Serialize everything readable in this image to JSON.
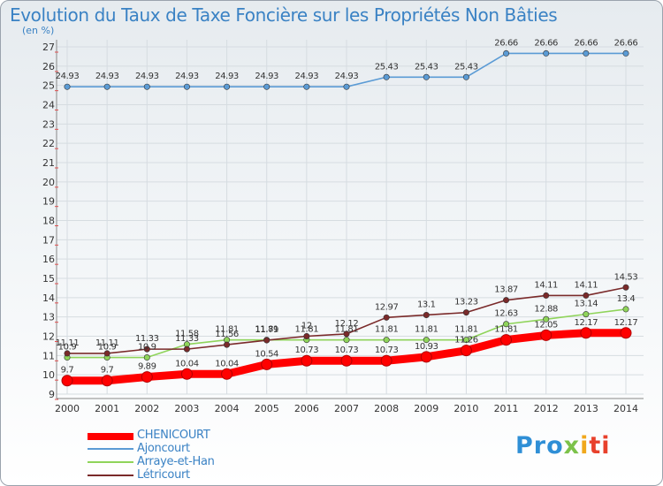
{
  "chart_data": {
    "type": "line",
    "title": "Evolution du Taux de Taxe Foncière sur les Propriétés Non Bâties",
    "subtitle": "(en %)",
    "x": [
      "2000",
      "2001",
      "2002",
      "2003",
      "2004",
      "2005",
      "2006",
      "2007",
      "2008",
      "2009",
      "2010",
      "2011",
      "2012",
      "2013",
      "2014"
    ],
    "ylim": [
      9,
      27
    ],
    "yticks": [
      9,
      10,
      11,
      12,
      13,
      14,
      15,
      16,
      17,
      18,
      19,
      20,
      21,
      22,
      23,
      24,
      25,
      26,
      27
    ],
    "grid": true,
    "legend_position": "bottom-left",
    "series": [
      {
        "name": "CHENICOURT",
        "color": "#ff0000",
        "values": [
          9.7,
          9.7,
          9.89,
          10.04,
          10.04,
          10.54,
          10.73,
          10.73,
          10.73,
          10.93,
          11.26,
          11.81,
          12.05,
          12.17,
          12.17
        ],
        "labels": [
          "9.7",
          "9.7",
          "9.89",
          "10.04",
          "10.04",
          "10.54",
          "10.73",
          "10.73",
          "10.73",
          "10.93",
          "11.26",
          "11.81",
          "12.05",
          "12.17",
          "12.17"
        ]
      },
      {
        "name": "Ajoncourt",
        "color": "#5b9bd5",
        "values": [
          24.93,
          24.93,
          24.93,
          24.93,
          24.93,
          24.93,
          24.93,
          24.93,
          25.43,
          25.43,
          25.43,
          26.66,
          26.66,
          26.66,
          26.66
        ],
        "labels": [
          "24.93",
          "24.93",
          "24.93",
          "24.93",
          "24.93",
          "24.93",
          "24.93",
          "24.93",
          "25.43",
          "25.43",
          "25.43",
          "26.66",
          "26.66",
          "26.66",
          "26.66"
        ]
      },
      {
        "name": "Arraye-et-Han",
        "color": "#8fd45a",
        "values": [
          10.9,
          10.9,
          10.9,
          11.58,
          11.81,
          11.81,
          11.81,
          11.81,
          11.81,
          11.81,
          11.81,
          12.63,
          12.88,
          13.14,
          13.4
        ],
        "labels": [
          "10.9",
          "10.9",
          "10.9",
          "11.58",
          "11.81",
          "11.81",
          "11.81",
          "11.81",
          "11.81",
          "11.81",
          "11.81",
          "12.63",
          "12.88",
          "13.14",
          "13.4"
        ]
      },
      {
        "name": "Létricourt",
        "color": "#7a2a2a",
        "values": [
          11.11,
          11.11,
          11.33,
          11.33,
          11.56,
          11.79,
          12,
          12.12,
          12.97,
          13.1,
          13.23,
          13.87,
          14.11,
          14.11,
          14.53
        ],
        "labels": [
          "11.11",
          "11.11",
          "11.33",
          "11.33",
          "11.56",
          "11.79",
          "12",
          "12.12",
          "12.97",
          "13.1",
          "13.23",
          "13.87",
          "14.11",
          "14.11",
          "14.53"
        ]
      }
    ]
  },
  "logo": {
    "p1": "Pro",
    "p2": "x",
    "p3": "i",
    "p4": "ti"
  }
}
